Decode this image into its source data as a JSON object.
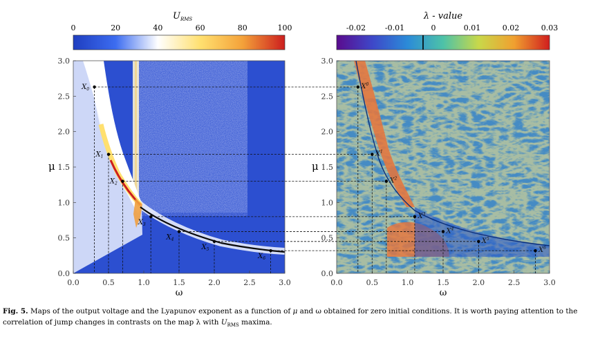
{
  "figure": {
    "left_panel": {
      "colorbar_title_main": "U",
      "colorbar_title_sub": "RMS",
      "colorbar_ticks": [
        "0",
        "20",
        "40",
        "60",
        "80",
        "100"
      ],
      "colorbar_colors": [
        "#1f3ec0",
        "#3c6cf0",
        "#ffffff",
        "#ffe070",
        "#f4a23a",
        "#cc1e1e"
      ],
      "ylabel": "μ",
      "xlabel": "ω",
      "point_labels": [
        "X",
        "X",
        "X",
        "X",
        "X",
        "X",
        "X"
      ],
      "point_label_subs": [
        "0",
        "1",
        "2",
        "3",
        "4",
        "5",
        "6"
      ]
    },
    "right_panel": {
      "colorbar_title": "λ - value",
      "colorbar_ticks": [
        "-0.02",
        "-0.01",
        "0",
        "0.01",
        "0.02",
        "0.03"
      ],
      "colorbar_colors": [
        "#5a0b8e",
        "#3e47c8",
        "#2b8bd8",
        "#4dc2a8",
        "#c8d84a",
        "#f0a030",
        "#d01e1e"
      ],
      "ylabel": "μ",
      "xlabel": "ω",
      "point_labels": [
        "X",
        "X",
        "X",
        "X",
        "X",
        "X",
        "X"
      ],
      "point_label_subs": [
        "0",
        "1",
        "2",
        "3",
        "4",
        "5",
        "6"
      ]
    }
  },
  "chart_data": [
    {
      "type": "heatmap",
      "title": "",
      "xlabel": "ω",
      "ylabel": "μ",
      "xlim": [
        0.0,
        3.0
      ],
      "ylim": [
        0.0,
        3.0
      ],
      "x_ticks": [
        "0.0",
        "0.5",
        "1.0",
        "1.5",
        "2.0",
        "2.5",
        "3.0"
      ],
      "y_ticks": [
        "0.0",
        "0.5",
        "1.0",
        "1.5",
        "2.0",
        "2.5",
        "3.0"
      ],
      "colorbar_label": "U_RMS",
      "colorbar_range": [
        0,
        100
      ],
      "points": [
        {
          "label": "X0",
          "x": 0.3,
          "y": 2.63
        },
        {
          "label": "X1",
          "x": 0.5,
          "y": 1.68
        },
        {
          "label": "X2",
          "x": 0.7,
          "y": 1.3
        },
        {
          "label": "X3",
          "x": 1.1,
          "y": 0.8
        },
        {
          "label": "X4",
          "x": 1.5,
          "y": 0.59
        },
        {
          "label": "X5",
          "x": 2.0,
          "y": 0.45
        },
        {
          "label": "X6",
          "x": 2.8,
          "y": 0.32
        }
      ]
    },
    {
      "type": "heatmap",
      "title": "",
      "xlabel": "ω",
      "ylabel": "μ",
      "xlim": [
        0.0,
        3.0
      ],
      "ylim": [
        0.0,
        3.0
      ],
      "x_ticks": [
        "0.0",
        "0.5",
        "1.0",
        "1.5",
        "2.0",
        "2.5",
        "3.0"
      ],
      "y_ticks": [
        "0.0",
        "0.5",
        "1.0",
        "1.5",
        "2.0",
        "2.5",
        "3.0"
      ],
      "colorbar_label": "λ - value",
      "colorbar_range": [
        -0.025,
        0.03
      ],
      "points": [
        {
          "label": "X0",
          "x": 0.3,
          "y": 2.63
        },
        {
          "label": "X1",
          "x": 0.5,
          "y": 1.68
        },
        {
          "label": "X2",
          "x": 0.7,
          "y": 1.3
        },
        {
          "label": "X3",
          "x": 1.1,
          "y": 0.8
        },
        {
          "label": "X4",
          "x": 1.5,
          "y": 0.59
        },
        {
          "label": "X5",
          "x": 2.0,
          "y": 0.45
        },
        {
          "label": "X6",
          "x": 2.8,
          "y": 0.32
        }
      ]
    }
  ],
  "caption": {
    "label": "Fig. 5.",
    "text_1": " Maps of the output voltage and the Lyapunov exponent as a function of ",
    "mu": "μ",
    "text_2": " and ω obtained for zero initial conditions. It is worth paying attention to the correlation of jump changes in contrasts on the map λ with ",
    "urms_main": "U",
    "urms_sub": "RMS",
    "text_3": " maxima."
  }
}
